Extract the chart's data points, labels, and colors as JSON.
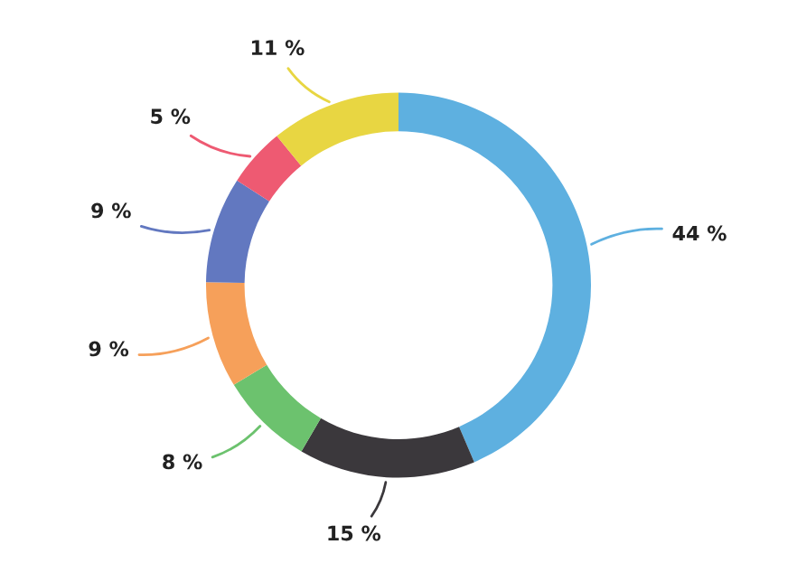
{
  "chart_data": {
    "type": "donut",
    "categories": [
      null,
      null,
      null,
      null,
      null,
      null,
      null
    ],
    "values": [
      44,
      15,
      8,
      9,
      9,
      5,
      11
    ],
    "colors": [
      "#5eb0e0",
      "#3b383c",
      "#6cc26e",
      "#f6a05a",
      "#6278c0",
      "#ee5a72",
      "#e8d642"
    ],
    "value_labels": [
      "44 %",
      "15 %",
      "8 %",
      "9 %",
      "9 %",
      "5 %",
      "11 %"
    ]
  }
}
